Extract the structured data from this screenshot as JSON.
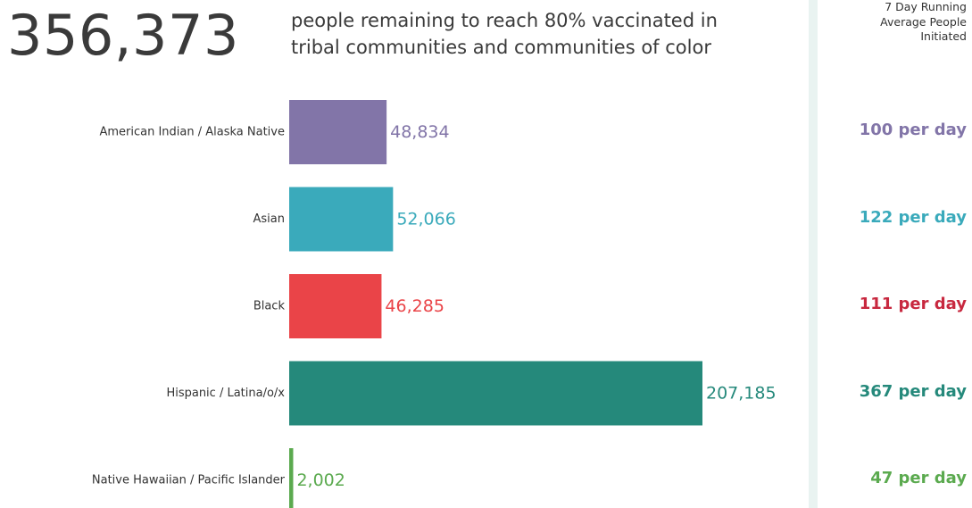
{
  "total": "356,373",
  "headline": {
    "line1": "people remaining to reach 80% vaccinated in",
    "line2": "tribal communities and communities of color"
  },
  "rate_header": {
    "line1": "7 Day Running",
    "line2": "Average People",
    "line3": "Initiated"
  },
  "chart_data": {
    "type": "bar",
    "orientation": "horizontal",
    "categories": [
      "American Indian / Alaska Native",
      "Asian",
      "Black",
      "Hispanic / Latina/o/x",
      "Native Hawaiian / Pacific Islander"
    ],
    "values": [
      48834,
      52066,
      46285,
      207185,
      2002
    ],
    "value_labels": [
      "48,834",
      "52,066",
      "46,285",
      "207,185",
      "2,002"
    ],
    "colors": [
      "#8275a8",
      "#3aaabb",
      "#ea4448",
      "#25897b",
      "#5baa4f"
    ],
    "title": "",
    "xlabel": "",
    "ylabel": "",
    "grid": false
  },
  "rates": [
    {
      "label": "100 per day",
      "color": "#8275a8"
    },
    {
      "label": "122 per day",
      "color": "#3aaabb"
    },
    {
      "label": "111 per day",
      "color": "#c8283f"
    },
    {
      "label": "367 per day",
      "color": "#25897b"
    },
    {
      "label": "47 per day",
      "color": "#5baa4f"
    }
  ]
}
